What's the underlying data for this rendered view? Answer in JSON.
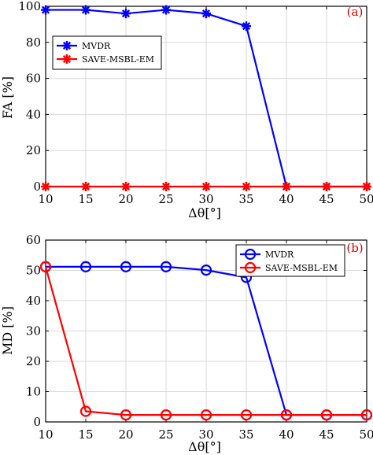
{
  "chart_data": [
    {
      "type": "line",
      "panel_label": "(a)",
      "xlabel": "Δθ[°]",
      "ylabel": "FA [%]",
      "xlim": [
        10,
        50
      ],
      "ylim": [
        0,
        100
      ],
      "x_ticks": [
        10,
        15,
        20,
        25,
        30,
        35,
        40,
        45,
        50
      ],
      "y_ticks": [
        0,
        20,
        40,
        60,
        80,
        100
      ],
      "grid": true,
      "legend_position": "upper-left",
      "series": [
        {
          "name": "MVDR",
          "color": "#0000ff",
          "marker": "asterisk",
          "x": [
            10,
            15,
            20,
            25,
            30,
            35,
            40,
            45,
            50
          ],
          "values": [
            98,
            98,
            96,
            98,
            96,
            89,
            0,
            0,
            0
          ]
        },
        {
          "name": "SAVE-MSBL-EM",
          "color": "#ff0000",
          "marker": "asterisk",
          "x": [
            10,
            15,
            20,
            25,
            30,
            35,
            40,
            45,
            50
          ],
          "values": [
            0,
            0,
            0,
            0,
            0,
            0,
            0,
            0,
            0
          ]
        }
      ]
    },
    {
      "type": "line",
      "panel_label": "(b)",
      "xlabel": "Δθ[°]",
      "ylabel": "MD [%]",
      "xlim": [
        10,
        50
      ],
      "ylim": [
        0,
        60
      ],
      "x_ticks": [
        10,
        15,
        20,
        25,
        30,
        35,
        40,
        45,
        50
      ],
      "y_ticks": [
        0,
        10,
        20,
        30,
        40,
        50,
        60
      ],
      "grid": true,
      "legend_position": "upper-right",
      "series": [
        {
          "name": "MVDR",
          "color": "#0000ff",
          "marker": "circle",
          "x": [
            10,
            15,
            20,
            25,
            30,
            35,
            40,
            45,
            50
          ],
          "values": [
            51.2,
            51.2,
            51.2,
            51.2,
            50.1,
            47.7,
            2.3,
            2.3,
            2.3
          ]
        },
        {
          "name": "SAVE-MSBL-EM",
          "color": "#ff0000",
          "marker": "circle",
          "x": [
            10,
            15,
            20,
            25,
            30,
            35,
            40,
            45,
            50
          ],
          "values": [
            51.2,
            3.5,
            2.3,
            2.3,
            2.3,
            2.3,
            2.3,
            2.3,
            2.3
          ]
        }
      ]
    }
  ]
}
